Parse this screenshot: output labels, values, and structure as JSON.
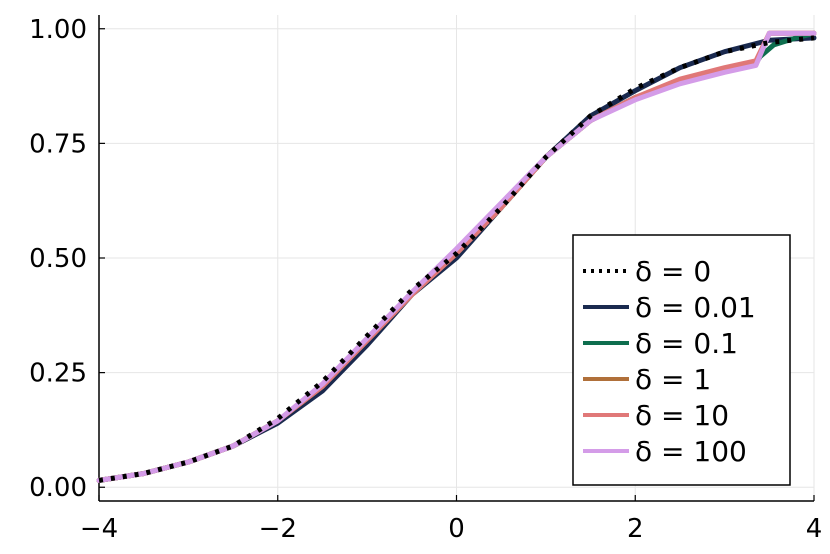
{
  "chart_data": {
    "type": "line",
    "title": "",
    "xlabel": "",
    "ylabel": "",
    "xlim": [
      -4,
      4
    ],
    "ylim": [
      -0.03,
      1.03
    ],
    "xticks": [
      -4,
      -2,
      0,
      2,
      4
    ],
    "xtick_labels": [
      "−4",
      "−2",
      "0",
      "2",
      "4"
    ],
    "yticks": [
      0,
      0.25,
      0.5,
      0.75,
      1.0
    ],
    "ytick_labels": [
      "0.00",
      "0.25",
      "0.50",
      "0.75",
      "1.00"
    ],
    "grid": true,
    "legend_position": "bottom-right",
    "series": [
      {
        "name": "δ = 0",
        "color": "#000000",
        "style": "dotted",
        "x": [
          -4,
          -3.5,
          -3,
          -2.5,
          -2,
          -1.5,
          -1,
          -0.5,
          0,
          0.5,
          1,
          1.5,
          2,
          2.5,
          3,
          3.5,
          4
        ],
        "y": [
          0.015,
          0.03,
          0.055,
          0.09,
          0.15,
          0.23,
          0.33,
          0.43,
          0.51,
          0.61,
          0.72,
          0.81,
          0.87,
          0.915,
          0.95,
          0.97,
          0.98
        ]
      },
      {
        "name": "δ = 0.01",
        "color": "#1a2a4f",
        "style": "solid",
        "x": [
          -4,
          -3.5,
          -3,
          -2.5,
          -2,
          -1.5,
          -1,
          -0.5,
          0,
          0.5,
          1,
          1.5,
          2,
          2.5,
          3,
          3.5,
          4
        ],
        "y": [
          0.015,
          0.03,
          0.055,
          0.09,
          0.14,
          0.21,
          0.31,
          0.42,
          0.5,
          0.61,
          0.72,
          0.81,
          0.865,
          0.915,
          0.95,
          0.975,
          0.98
        ]
      },
      {
        "name": "δ = 0.1",
        "color": "#0e6e4e",
        "style": "solid",
        "x": [
          -4,
          -3.5,
          -3,
          -2.5,
          -2,
          -1.5,
          -1,
          -0.5,
          0,
          0.5,
          1,
          1.5,
          2,
          2.5,
          3,
          3.35,
          3.4,
          3.55,
          3.8,
          4
        ],
        "y": [
          0.015,
          0.03,
          0.055,
          0.09,
          0.145,
          0.22,
          0.32,
          0.42,
          0.51,
          0.61,
          0.72,
          0.8,
          0.85,
          0.885,
          0.91,
          0.925,
          0.94,
          0.965,
          0.98,
          0.99
        ]
      },
      {
        "name": "δ = 1",
        "color": "#b0703a",
        "style": "solid",
        "x": [
          -4,
          -3.5,
          -3,
          -2.5,
          -2,
          -1.5,
          -1,
          -0.5,
          0,
          0.5,
          1,
          1.5,
          2,
          2.5,
          3,
          3.35,
          3.5,
          4
        ],
        "y": [
          0.015,
          0.03,
          0.055,
          0.09,
          0.145,
          0.22,
          0.32,
          0.42,
          0.51,
          0.61,
          0.72,
          0.8,
          0.85,
          0.885,
          0.91,
          0.925,
          0.99,
          0.99
        ]
      },
      {
        "name": "δ = 10",
        "color": "#e07878",
        "style": "solid",
        "x": [
          -4,
          -3.5,
          -3,
          -2.5,
          -2,
          -1.5,
          -1,
          -0.5,
          0,
          0.5,
          1,
          1.5,
          2,
          2.5,
          3,
          3.35,
          3.5,
          4
        ],
        "y": [
          0.015,
          0.03,
          0.055,
          0.09,
          0.145,
          0.22,
          0.32,
          0.42,
          0.51,
          0.61,
          0.72,
          0.8,
          0.85,
          0.89,
          0.915,
          0.93,
          0.99,
          0.99
        ]
      },
      {
        "name": "δ = 100",
        "color": "#d49ce8",
        "style": "solid",
        "x": [
          -4,
          -3.5,
          -3,
          -2.5,
          -2,
          -1.5,
          -1,
          -0.5,
          0,
          0.5,
          1,
          1.5,
          2,
          2.5,
          3,
          3.35,
          3.5,
          4
        ],
        "y": [
          0.015,
          0.03,
          0.055,
          0.09,
          0.145,
          0.225,
          0.325,
          0.425,
          0.52,
          0.62,
          0.72,
          0.8,
          0.845,
          0.88,
          0.905,
          0.92,
          0.99,
          0.99
        ]
      }
    ]
  }
}
